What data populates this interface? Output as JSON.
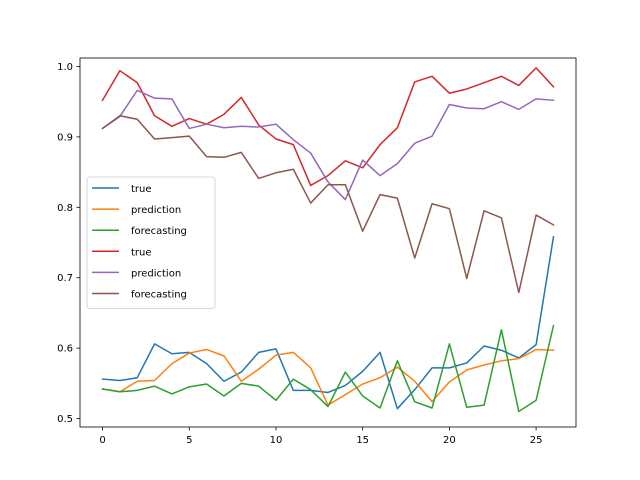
{
  "chart_data": {
    "type": "line",
    "title": "",
    "xlabel": "",
    "ylabel": "",
    "xlim": [
      -1.3,
      27.3
    ],
    "ylim": [
      0.488,
      1.012
    ],
    "x_ticks": [
      0,
      5,
      10,
      15,
      20,
      25
    ],
    "y_ticks": [
      0.5,
      0.6,
      0.7,
      0.8,
      0.9,
      1.0
    ],
    "y_tick_labels": [
      "0.5",
      "0.6",
      "0.7",
      "0.8",
      "0.9",
      "1.0"
    ],
    "grid": false,
    "legend": {
      "placement": "center-left"
    },
    "x": [
      0,
      1,
      2,
      3,
      4,
      5,
      6,
      7,
      8,
      9,
      10,
      11,
      12,
      13,
      14,
      15,
      16,
      17,
      18,
      19,
      20,
      21,
      22,
      23,
      24,
      25,
      26
    ],
    "series": [
      {
        "name": "true",
        "color": "#1f77b4",
        "values": [
          0.556,
          0.554,
          0.558,
          0.606,
          0.592,
          0.594,
          0.578,
          0.553,
          0.566,
          0.594,
          0.599,
          0.54,
          0.54,
          0.537,
          0.547,
          0.567,
          0.594,
          0.514,
          0.541,
          0.572,
          0.572,
          0.579,
          0.603,
          0.597,
          0.586,
          0.605,
          0.758
        ]
      },
      {
        "name": "prediction",
        "color": "#ff7f0e",
        "values": [
          0.542,
          0.538,
          0.553,
          0.554,
          0.578,
          0.593,
          0.598,
          0.589,
          0.553,
          0.57,
          0.59,
          0.594,
          0.572,
          0.519,
          0.534,
          0.549,
          0.558,
          0.573,
          0.553,
          0.524,
          0.552,
          0.569,
          0.576,
          0.582,
          0.585,
          0.598,
          0.597
        ]
      },
      {
        "name": "forecasting",
        "color": "#2ca02c",
        "values": [
          0.542,
          0.538,
          0.54,
          0.546,
          0.535,
          0.545,
          0.549,
          0.532,
          0.55,
          0.546,
          0.526,
          0.556,
          0.541,
          0.517,
          0.566,
          0.532,
          0.515,
          0.582,
          0.524,
          0.515,
          0.606,
          0.516,
          0.519,
          0.626,
          0.51,
          0.526,
          0.632
        ]
      },
      {
        "name": "true",
        "color": "#d62728",
        "values": [
          0.952,
          0.994,
          0.977,
          0.93,
          0.915,
          0.926,
          0.918,
          0.932,
          0.956,
          0.917,
          0.897,
          0.889,
          0.831,
          0.845,
          0.866,
          0.856,
          0.889,
          0.913,
          0.978,
          0.986,
          0.962,
          0.968,
          0.977,
          0.986,
          0.973,
          0.998,
          0.971
        ]
      },
      {
        "name": "prediction",
        "color": "#9467bd",
        "values": [
          0.912,
          0.929,
          0.966,
          0.955,
          0.954,
          0.912,
          0.918,
          0.913,
          0.915,
          0.914,
          0.918,
          0.896,
          0.877,
          0.836,
          0.811,
          0.867,
          0.845,
          0.862,
          0.891,
          0.901,
          0.946,
          0.941,
          0.94,
          0.95,
          0.939,
          0.954,
          0.952
        ]
      },
      {
        "name": "forecasting",
        "color": "#8c564b",
        "values": [
          0.912,
          0.93,
          0.925,
          0.897,
          0.899,
          0.901,
          0.872,
          0.871,
          0.878,
          0.841,
          0.849,
          0.854,
          0.806,
          0.832,
          0.832,
          0.766,
          0.818,
          0.813,
          0.728,
          0.805,
          0.798,
          0.699,
          0.795,
          0.785,
          0.679,
          0.789,
          0.775
        ]
      }
    ]
  }
}
